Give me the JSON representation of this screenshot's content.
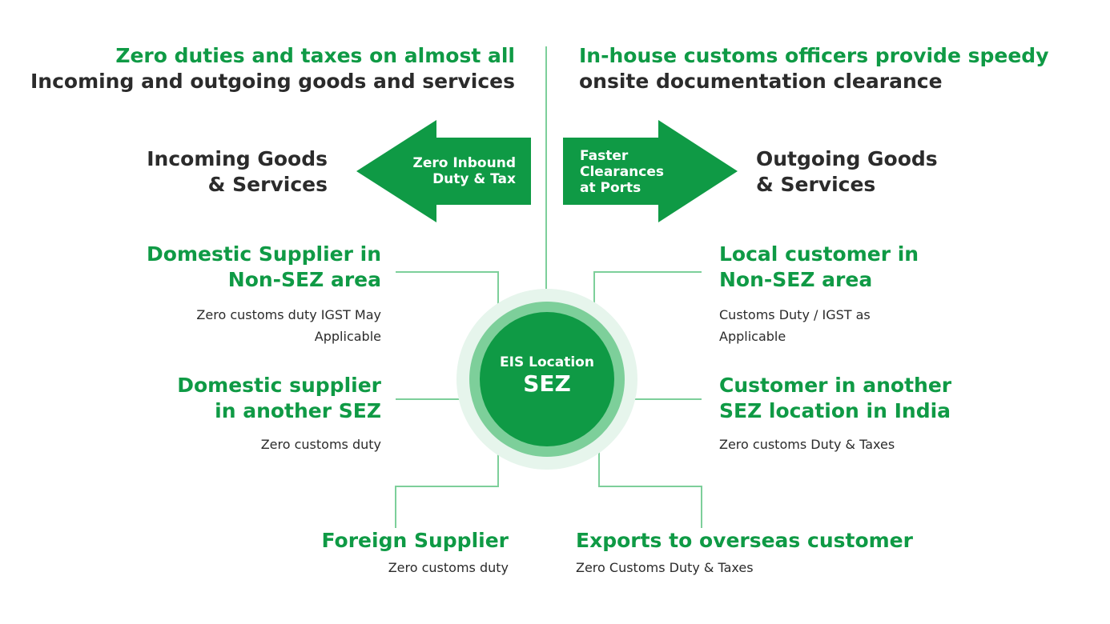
{
  "top_left": {
    "line1": "Zero duties and taxes on almost all",
    "line2": "Incoming and outgoing goods and services"
  },
  "top_right": {
    "line1": "In-house customs officers provide speedy",
    "line2": "onsite documentation clearance"
  },
  "incoming": {
    "line1": "Incoming Goods",
    "line2": "& Services"
  },
  "outgoing": {
    "line1": "Outgoing Goods",
    "line2": "& Services"
  },
  "arrow_left": {
    "line1": "Zero Inbound",
    "line2": "Duty & Tax"
  },
  "arrow_right": {
    "line1": "Faster",
    "line2": "Clearances",
    "line3": "at Ports"
  },
  "center": {
    "line1": "EIS Location",
    "line2": "SEZ"
  },
  "nodes": {
    "domestic_non_sez": {
      "title1": "Domestic Supplier in",
      "title2": "Non-SEZ area",
      "desc1": "Zero customs duty IGST May",
      "desc2": "Applicable"
    },
    "domestic_sez": {
      "title1": "Domestic supplier",
      "title2": "in another SEZ",
      "desc1": "Zero customs duty"
    },
    "foreign": {
      "title1": "Foreign Supplier",
      "desc1": "Zero customs duty"
    },
    "local_customer": {
      "title1": "Local customer in",
      "title2": "Non-SEZ area",
      "desc1": "Customs Duty / IGST as",
      "desc2": "Applicable"
    },
    "customer_sez": {
      "title1": "Customer in another",
      "title2": "SEZ location in India",
      "desc1": "Zero customs Duty & Taxes"
    },
    "exports": {
      "title1": "Exports to overseas customer",
      "desc1": "Zero Customs Duty & Taxes"
    }
  },
  "colors": {
    "green": "#0f9a45",
    "light_green": "#7dcf9a",
    "pale_green": "#e6f5ec",
    "dark": "#2b2b2b"
  }
}
